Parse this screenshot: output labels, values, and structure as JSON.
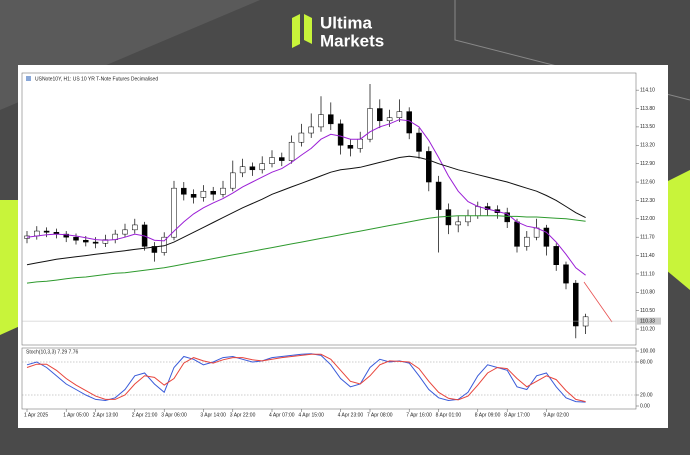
{
  "header": {
    "brand_top": "Ultima",
    "brand_bottom": "Markets"
  },
  "chart_data": [
    {
      "type": "candlestick",
      "title": "USNote10Y, H1:  US 10 YR T-Note Futures Decimalised",
      "categories": [
        "1 Apr 2025",
        null,
        null,
        null,
        "1 Apr 05:00",
        null,
        null,
        "2 Apr 13:00",
        null,
        null,
        null,
        "2 Apr 21:00",
        null,
        null,
        "3 Apr 06:00",
        null,
        null,
        null,
        "3 Apr 14:00",
        null,
        null,
        "3 Apr 22:00",
        null,
        null,
        null,
        "4 Apr 07:00",
        null,
        null,
        "4 Apr 15:00",
        null,
        null,
        null,
        "4 Apr 23:00",
        null,
        null,
        "7 Apr 08:00",
        null,
        null,
        null,
        "7 Apr 16:00",
        null,
        null,
        "8 Apr 01:00",
        null,
        null,
        null,
        "8 Apr 09:00",
        null,
        null,
        "8 Apr 17:00",
        null,
        null,
        null,
        "9 Apr 02:00",
        null,
        null,
        null,
        null
      ],
      "open": [
        111.68,
        111.72,
        111.8,
        111.78,
        111.75,
        111.7,
        111.65,
        111.62,
        111.6,
        111.66,
        111.75,
        111.82,
        111.9,
        111.55,
        111.45,
        111.7,
        112.5,
        112.4,
        112.35,
        112.45,
        112.4,
        112.5,
        112.75,
        112.85,
        112.8,
        112.9,
        113.0,
        112.95,
        113.25,
        113.4,
        113.5,
        113.7,
        113.55,
        113.2,
        113.15,
        113.3,
        113.8,
        113.6,
        113.65,
        113.75,
        113.4,
        113.1,
        112.6,
        112.15,
        111.9,
        111.95,
        112.05,
        112.2,
        112.15,
        112.1,
        111.95,
        111.55,
        111.7,
        111.85,
        111.55,
        111.25,
        110.95,
        110.25
      ],
      "high": [
        111.8,
        111.88,
        111.86,
        111.84,
        111.8,
        111.76,
        111.72,
        111.7,
        111.74,
        111.82,
        111.92,
        112.0,
        111.95,
        111.62,
        111.78,
        112.62,
        112.6,
        112.48,
        112.55,
        112.52,
        112.62,
        112.95,
        112.98,
        112.92,
        113.02,
        113.12,
        113.08,
        113.36,
        113.55,
        113.72,
        114.0,
        113.9,
        113.62,
        113.3,
        113.42,
        114.2,
        113.95,
        113.78,
        113.95,
        113.82,
        113.48,
        113.18,
        112.7,
        112.25,
        112.05,
        112.15,
        112.28,
        112.26,
        112.22,
        112.18,
        112.0,
        111.8,
        112.0,
        111.9,
        111.6,
        111.3,
        111.0,
        110.45
      ],
      "low": [
        111.6,
        111.66,
        111.7,
        111.68,
        111.62,
        111.58,
        111.55,
        111.52,
        111.54,
        111.6,
        111.7,
        111.76,
        111.48,
        111.3,
        111.4,
        111.65,
        112.3,
        112.25,
        112.28,
        112.3,
        112.35,
        112.45,
        112.68,
        112.7,
        112.74,
        112.84,
        112.86,
        112.9,
        113.18,
        113.32,
        113.42,
        113.45,
        113.05,
        113.02,
        113.08,
        113.25,
        113.48,
        113.5,
        113.58,
        113.3,
        112.98,
        112.45,
        111.45,
        111.75,
        111.78,
        111.88,
        112.0,
        112.05,
        112.0,
        111.85,
        111.45,
        111.48,
        111.65,
        111.4,
        111.15,
        110.85,
        110.05,
        110.12
      ],
      "close": [
        111.72,
        111.8,
        111.78,
        111.75,
        111.7,
        111.65,
        111.62,
        111.6,
        111.66,
        111.75,
        111.82,
        111.9,
        111.55,
        111.45,
        111.7,
        112.5,
        112.4,
        112.35,
        112.45,
        112.4,
        112.5,
        112.75,
        112.85,
        112.8,
        112.9,
        113.0,
        112.95,
        113.25,
        113.4,
        113.5,
        113.7,
        113.55,
        113.2,
        113.15,
        113.3,
        113.8,
        113.6,
        113.65,
        113.75,
        113.4,
        113.1,
        112.6,
        112.15,
        111.9,
        111.95,
        112.05,
        112.2,
        112.15,
        112.1,
        111.95,
        111.55,
        111.7,
        111.85,
        111.55,
        111.25,
        110.95,
        110.25,
        110.4
      ],
      "up_color": "#ffffff",
      "down_color": "#000000",
      "series": [
        {
          "color": "#9b1fd6",
          "values": [
            111.7,
            111.72,
            111.74,
            111.75,
            111.74,
            111.72,
            111.69,
            111.66,
            111.65,
            111.66,
            111.7,
            111.75,
            111.72,
            111.65,
            111.64,
            111.8,
            111.95,
            112.08,
            112.18,
            112.26,
            112.33,
            112.42,
            112.52,
            112.6,
            112.68,
            112.76,
            112.82,
            112.92,
            113.04,
            113.15,
            113.3,
            113.38,
            113.35,
            113.3,
            113.3,
            113.42,
            113.5,
            113.55,
            113.62,
            113.6,
            113.5,
            113.28,
            113.0,
            112.7,
            112.45,
            112.28,
            112.2,
            112.16,
            112.12,
            112.08,
            111.95,
            111.88,
            111.85,
            111.78,
            111.62,
            111.42,
            111.2,
            111.08
          ]
        },
        {
          "color": "#111111",
          "values": [
            111.25,
            111.28,
            111.31,
            111.34,
            111.36,
            111.38,
            111.4,
            111.42,
            111.44,
            111.46,
            111.48,
            111.5,
            111.52,
            111.54,
            111.56,
            111.62,
            111.7,
            111.78,
            111.86,
            111.94,
            112.02,
            112.1,
            112.18,
            112.25,
            112.32,
            112.4,
            112.46,
            112.52,
            112.58,
            112.64,
            112.7,
            112.76,
            112.8,
            112.82,
            112.84,
            112.88,
            112.92,
            112.96,
            113.0,
            113.02,
            113.0,
            112.96,
            112.9,
            112.85,
            112.8,
            112.76,
            112.72,
            112.68,
            112.64,
            112.6,
            112.55,
            112.5,
            112.45,
            112.38,
            112.3,
            112.2,
            112.1,
            112.02
          ]
        },
        {
          "color": "#2e9a2e",
          "values": [
            110.95,
            110.97,
            110.98,
            111.0,
            111.02,
            111.04,
            111.05,
            111.07,
            111.09,
            111.11,
            111.12,
            111.14,
            111.16,
            111.18,
            111.2,
            111.23,
            111.26,
            111.29,
            111.32,
            111.35,
            111.38,
            111.41,
            111.44,
            111.47,
            111.5,
            111.53,
            111.56,
            111.59,
            111.62,
            111.65,
            111.68,
            111.71,
            111.74,
            111.77,
            111.8,
            111.83,
            111.86,
            111.89,
            111.92,
            111.95,
            111.98,
            112.01,
            112.03,
            112.04,
            112.05,
            112.05,
            112.05,
            112.05,
            112.05,
            112.04,
            112.04,
            112.03,
            112.03,
            112.02,
            112.01,
            112.0,
            111.98,
            111.96
          ]
        }
      ],
      "price_line": 110.33,
      "ylim": [
        109.94,
        114.38
      ],
      "yticks": [
        {
          "value": 110.2,
          "label": "110.20"
        },
        {
          "value": 110.5,
          "label": "110.50"
        },
        {
          "value": 110.8,
          "label": "110.80"
        },
        {
          "value": 111.1,
          "label": "111.10"
        },
        {
          "value": 111.4,
          "label": "111.40"
        },
        {
          "value": 111.7,
          "label": "111.70"
        },
        {
          "value": 112,
          "label": "112.00"
        },
        {
          "value": 112.3,
          "label": "112.30"
        },
        {
          "value": 112.6,
          "label": "112.60"
        },
        {
          "value": 112.9,
          "label": "112.90"
        },
        {
          "value": 113.2,
          "label": "113.20"
        },
        {
          "value": 113.5,
          "label": "113.50"
        },
        {
          "value": 113.8,
          "label": "113.80"
        },
        {
          "value": 114.1,
          "label": "114.10"
        }
      ]
    },
    {
      "type": "line",
      "title": "Stoch(10,3,3) 7.29 7.76",
      "series": [
        {
          "color": "#3a5bd9",
          "values": [
            75,
            80,
            70,
            55,
            40,
            30,
            20,
            12,
            10,
            15,
            30,
            55,
            60,
            40,
            25,
            70,
            90,
            85,
            75,
            80,
            88,
            90,
            85,
            80,
            82,
            88,
            90,
            92,
            94,
            95,
            92,
            75,
            50,
            35,
            40,
            70,
            85,
            80,
            82,
            78,
            55,
            30,
            15,
            10,
            12,
            25,
            55,
            75,
            70,
            65,
            35,
            30,
            55,
            60,
            35,
            15,
            8,
            7
          ]
        },
        {
          "color": "#e8453c",
          "values": [
            70,
            76,
            76,
            65,
            50,
            38,
            28,
            18,
            12,
            12,
            20,
            40,
            55,
            52,
            38,
            50,
            78,
            88,
            82,
            78,
            84,
            88,
            88,
            84,
            82,
            85,
            88,
            90,
            92,
            94,
            94,
            85,
            65,
            45,
            40,
            55,
            75,
            82,
            81,
            80,
            68,
            45,
            25,
            14,
            11,
            18,
            38,
            60,
            70,
            68,
            50,
            35,
            45,
            55,
            48,
            28,
            12,
            8
          ]
        }
      ],
      "ylim": [
        0,
        100
      ],
      "yticks": [
        {
          "value": 0,
          "label": "0.00"
        },
        {
          "value": 20,
          "label": "20.00"
        },
        {
          "value": 80,
          "label": "80.00"
        },
        {
          "value": 100,
          "label": "100.00"
        }
      ]
    }
  ]
}
